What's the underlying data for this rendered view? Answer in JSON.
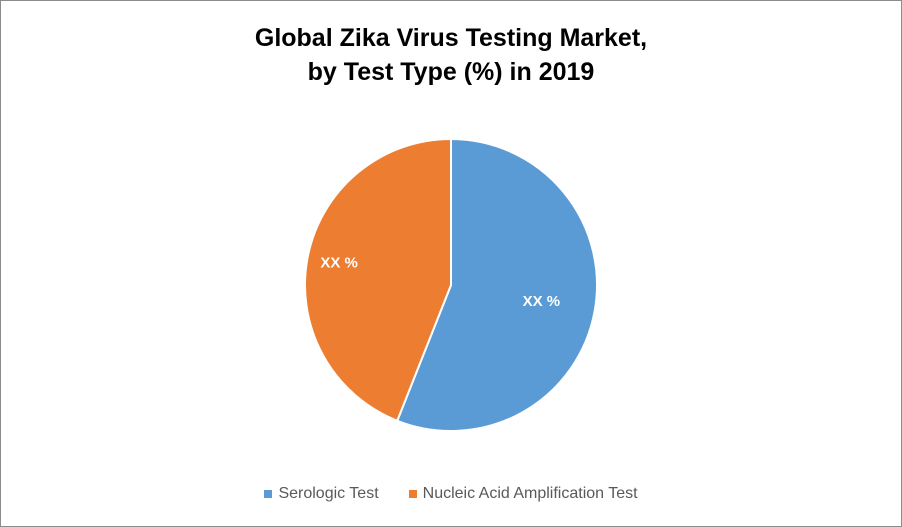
{
  "chart_data": {
    "type": "pie",
    "title": [
      "Global Zika Virus Testing Market,",
      "by Test Type (%) in 2019"
    ],
    "categories": [
      "Serologic Test",
      "Nucleic Acid Amplification Test"
    ],
    "values": [
      56,
      44
    ],
    "data_labels": [
      "XX %",
      "XX %"
    ],
    "colors": [
      "#5b9bd5",
      "#ed7d31"
    ],
    "legend_placement": "bottom"
  }
}
